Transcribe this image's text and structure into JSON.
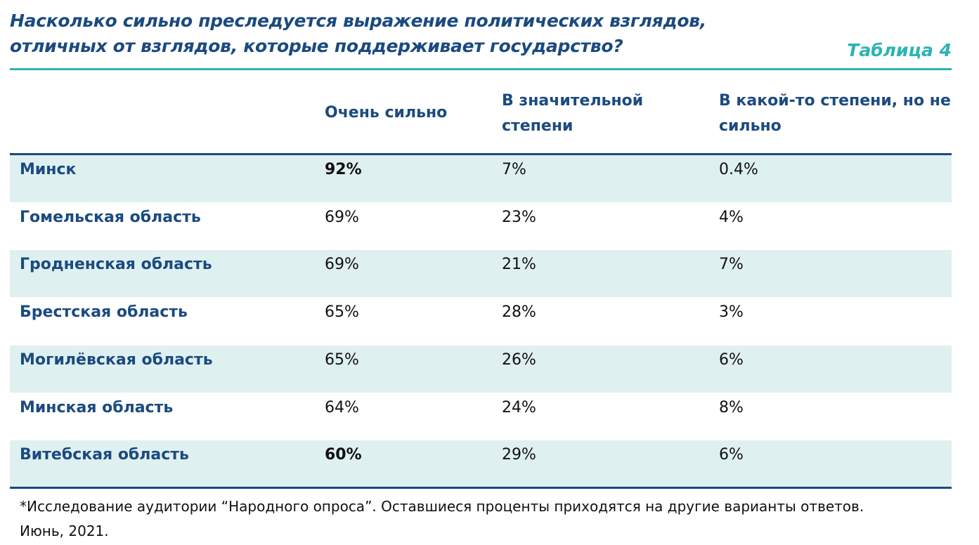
{
  "title_line1": "Насколько сильно преследуется выражение политических взглядов,",
  "title_line2": "отличных от взглядов, которые поддерживает государство?",
  "table_label": "Таблица 4",
  "headers": [
    "Очень сильно",
    "В значительной степени",
    "В какой-то степени, но не сильно"
  ],
  "rows": [
    {
      "region": "Минск",
      "v": [
        "92%",
        "7%",
        "0.4%"
      ]
    },
    {
      "region": "Гомельская область",
      "v": [
        "69%",
        "23%",
        "4%"
      ]
    },
    {
      "region": "Гродненская область",
      "v": [
        "69%",
        "21%",
        "7%"
      ]
    },
    {
      "region": "Брестская область",
      "v": [
        "65%",
        "28%",
        "3%"
      ]
    },
    {
      "region": "Могилёвская область",
      "v": [
        "65%",
        "26%",
        "6%"
      ]
    },
    {
      "region": "Минская область",
      "v": [
        "64%",
        "24%",
        "8%"
      ]
    },
    {
      "region": "Витебская область",
      "v": [
        "60%",
        "29%",
        "6%"
      ]
    }
  ],
  "footnote_line1": "*Исследование аудитории “Народного опроса”. Оставшиеся проценты приходятся на другие варианты ответов.",
  "footnote_line2": "Июнь, 2021.",
  "colors": {
    "dark_blue": "#1b4a7f",
    "teal": "#2ab4b4",
    "row_shade": "#dff0f1"
  }
}
